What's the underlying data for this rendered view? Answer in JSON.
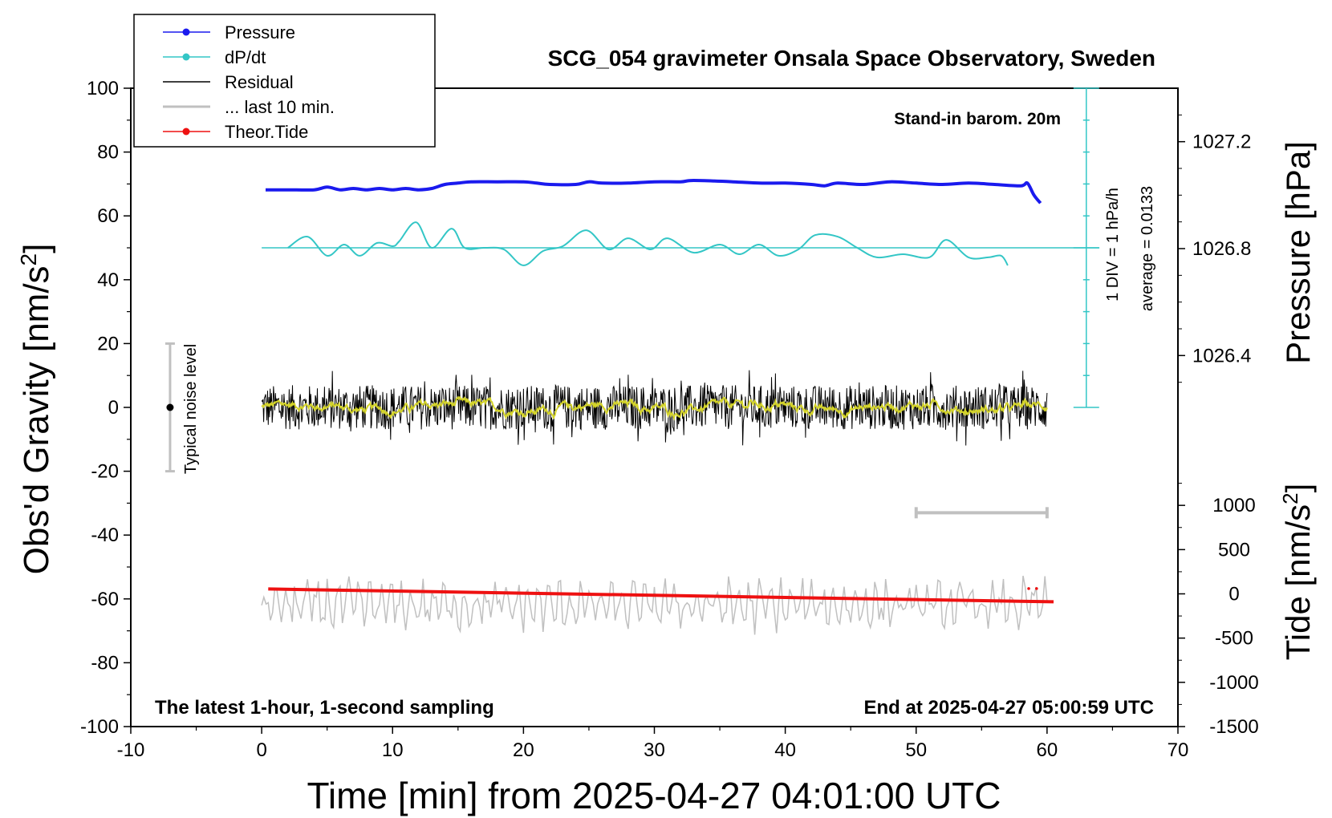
{
  "chart_data": {
    "type": "line",
    "title": "SCG_054 gravimeter Onsala Space Observatory, Sweden",
    "xlabel": "Time [min] from 2025-04-27 04:01:00 UTC",
    "ylabel_left_base": "Obs'd Gravity [nm/s",
    "ylabel_sup": "2",
    "ylabel_close": "]",
    "ylabel_right_pressure": "Pressure [hPa]",
    "ylabel_right_tide_base": "Tide [nm/s",
    "xlim": [
      -10,
      70
    ],
    "ylim": [
      -100,
      100
    ],
    "pressure_lim": [
      1026.2,
      1027.4
    ],
    "tide_lim": [
      -1500,
      1500
    ],
    "x_ticks": [
      "-10",
      "0",
      "10",
      "20",
      "30",
      "40",
      "50",
      "60",
      "70"
    ],
    "y_ticks": [
      "-100",
      "-80",
      "-60",
      "-40",
      "-20",
      "0",
      "20",
      "40",
      "60",
      "80",
      "100"
    ],
    "pressure_ticks": [
      "1026.4",
      "1026.8",
      "1027.2"
    ],
    "tide_ticks": [
      "-1500",
      "-1000",
      "-500",
      "0",
      "500",
      "1000"
    ],
    "legend": {
      "position": "top-left",
      "items": [
        {
          "label": "Pressure",
          "color": "#1a1aee",
          "marker": true
        },
        {
          "label": "dP/dt",
          "color": "#33c6c6",
          "marker": true
        },
        {
          "label": "Residual",
          "color": "#000000",
          "marker": false
        },
        {
          "label": "... last 10 min.",
          "color": "#c0c0c0",
          "marker": false
        },
        {
          "label": "Theor.Tide",
          "color": "#ee1111",
          "marker": true
        }
      ]
    },
    "annotations": {
      "barometer": "Stand-in barom. 20m",
      "div_label": "1 DIV = 1 hPa/h",
      "average_label": "average = 0.0133",
      "noise_label": "Typical noise level",
      "bottom_left": "The latest 1-hour, 1-second sampling",
      "bottom_right": "End at 2025-04-27 05:00:59 UTC"
    },
    "noise_bar": {
      "x": -7,
      "y_range": [
        -20,
        20
      ]
    },
    "last10_bar": {
      "x_range": [
        50,
        60
      ],
      "y": -33
    },
    "dpdt_scale_bar": {
      "x": 63,
      "y_range": [
        0,
        100
      ]
    },
    "series": [
      {
        "name": "Pressure",
        "color": "#1a1aee",
        "axis": "pressure",
        "x": [
          0.3,
          2,
          4,
          5,
          6,
          7,
          8,
          9,
          10,
          11,
          12,
          13,
          14,
          15,
          16,
          18,
          20,
          21,
          22,
          24,
          25,
          26,
          28,
          30,
          32,
          33,
          36,
          38,
          40,
          42,
          43,
          44,
          46,
          48,
          50,
          52,
          54,
          56,
          58,
          58.5,
          59,
          59.5
        ],
        "y": [
          1027.02,
          1027.02,
          1027.02,
          1027.03,
          1027.02,
          1027.025,
          1027.02,
          1027.025,
          1027.02,
          1027.025,
          1027.02,
          1027.025,
          1027.04,
          1027.045,
          1027.05,
          1027.05,
          1027.05,
          1027.045,
          1027.04,
          1027.04,
          1027.05,
          1027.045,
          1027.045,
          1027.05,
          1027.05,
          1027.055,
          1027.05,
          1027.045,
          1027.045,
          1027.04,
          1027.035,
          1027.045,
          1027.04,
          1027.05,
          1027.045,
          1027.04,
          1027.045,
          1027.04,
          1027.035,
          1027.045,
          1027.0,
          1026.97
        ]
      },
      {
        "name": "dP/dt",
        "color": "#33c6c6",
        "axis": "gravity",
        "x": [
          2,
          3.5,
          5,
          6.3,
          7.5,
          8.8,
          10,
          10.5,
          11.8,
          13,
          14.5,
          15.5,
          17,
          18.5,
          20,
          21.5,
          23,
          24.8,
          26.5,
          28,
          29.7,
          31,
          33,
          35,
          36.5,
          38,
          39.5,
          41,
          42.3,
          44,
          45.5,
          47,
          49,
          51,
          52.3,
          54,
          55.5,
          56.5,
          57
        ],
        "y": [
          50,
          53.5,
          47.5,
          51,
          47.5,
          51.5,
          50.5,
          52,
          58,
          50,
          56,
          50,
          50,
          49.5,
          44.5,
          49,
          50.5,
          55.5,
          49.5,
          53,
          49.5,
          53,
          48.5,
          51,
          48,
          51,
          47.5,
          49.5,
          54,
          53.5,
          50,
          47,
          48,
          47,
          52.5,
          47,
          47,
          47.5,
          44.5
        ]
      },
      {
        "name": "Residual",
        "color": "#000000",
        "axis": "gravity",
        "x_range": [
          0,
          60
        ],
        "amplitude_range": [
          -12,
          13
        ]
      },
      {
        "name": "... last 10 min.",
        "color": "#c0c0c0",
        "axis": "gravity",
        "x_range": [
          0,
          60
        ],
        "y_center": -62,
        "y_range": [
          -73,
          -51
        ]
      },
      {
        "name": "Theor.Tide",
        "color": "#ee1111",
        "axis": "tide",
        "x": [
          0.5,
          60.5
        ],
        "y": [
          55,
          -90
        ]
      }
    ]
  }
}
